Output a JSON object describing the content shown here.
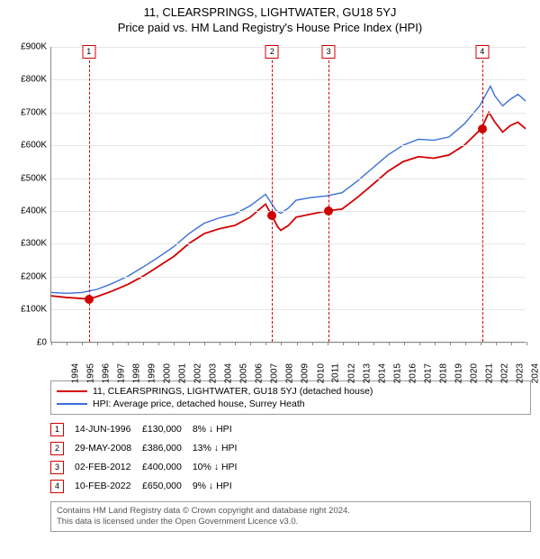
{
  "title": {
    "line1": "11, CLEARSPRINGS, LIGHTWATER, GU18 5YJ",
    "line2": "Price paid vs. HM Land Registry's House Price Index (HPI)"
  },
  "chart": {
    "type": "line",
    "x_min": 1994,
    "x_max": 2025,
    "y_min": 0,
    "y_max": 900000,
    "y_tick_step": 100000,
    "y_tick_prefix": "£",
    "y_tick_suffix": "K",
    "x_ticks": [
      1994,
      1995,
      1996,
      1997,
      1998,
      1999,
      2000,
      2001,
      2002,
      2003,
      2004,
      2005,
      2006,
      2007,
      2008,
      2009,
      2010,
      2011,
      2012,
      2013,
      2014,
      2015,
      2016,
      2017,
      2018,
      2019,
      2020,
      2021,
      2022,
      2023,
      2024,
      2025
    ],
    "grid_color": "#e6e6e6",
    "axis_color": "#888888",
    "background_color": "#ffffff",
    "series": [
      {
        "name": "11, CLEARSPRINGS, LIGHTWATER, GU18 5YJ (detached house)",
        "color": "#d00000",
        "width": 1.8,
        "points": [
          [
            1994.0,
            140000
          ],
          [
            1995.0,
            135000
          ],
          [
            1996.0,
            132000
          ],
          [
            1996.45,
            130000
          ],
          [
            1997.0,
            138000
          ],
          [
            1998.0,
            155000
          ],
          [
            1999.0,
            175000
          ],
          [
            2000.0,
            200000
          ],
          [
            2001.0,
            230000
          ],
          [
            2002.0,
            260000
          ],
          [
            2003.0,
            300000
          ],
          [
            2004.0,
            330000
          ],
          [
            2005.0,
            345000
          ],
          [
            2006.0,
            355000
          ],
          [
            2007.0,
            380000
          ],
          [
            2008.0,
            420000
          ],
          [
            2008.4,
            386000
          ],
          [
            2008.8,
            350000
          ],
          [
            2009.0,
            340000
          ],
          [
            2009.5,
            355000
          ],
          [
            2010.0,
            380000
          ],
          [
            2011.0,
            390000
          ],
          [
            2012.1,
            400000
          ],
          [
            2013.0,
            405000
          ],
          [
            2014.0,
            440000
          ],
          [
            2015.0,
            480000
          ],
          [
            2016.0,
            520000
          ],
          [
            2017.0,
            550000
          ],
          [
            2018.0,
            565000
          ],
          [
            2019.0,
            560000
          ],
          [
            2020.0,
            570000
          ],
          [
            2021.0,
            600000
          ],
          [
            2022.1,
            650000
          ],
          [
            2022.6,
            700000
          ],
          [
            2023.0,
            670000
          ],
          [
            2023.5,
            640000
          ],
          [
            2024.0,
            660000
          ],
          [
            2024.5,
            670000
          ],
          [
            2025.0,
            650000
          ]
        ]
      },
      {
        "name": "HPI: Average price, detached house, Surrey Heath",
        "color": "#3a6fd8",
        "width": 1.4,
        "points": [
          [
            1994.0,
            150000
          ],
          [
            1995.0,
            148000
          ],
          [
            1996.0,
            150000
          ],
          [
            1997.0,
            160000
          ],
          [
            1998.0,
            178000
          ],
          [
            1999.0,
            200000
          ],
          [
            2000.0,
            228000
          ],
          [
            2001.0,
            258000
          ],
          [
            2002.0,
            290000
          ],
          [
            2003.0,
            330000
          ],
          [
            2004.0,
            362000
          ],
          [
            2005.0,
            378000
          ],
          [
            2006.0,
            390000
          ],
          [
            2007.0,
            415000
          ],
          [
            2008.0,
            450000
          ],
          [
            2008.7,
            400000
          ],
          [
            2009.0,
            392000
          ],
          [
            2009.5,
            408000
          ],
          [
            2010.0,
            432000
          ],
          [
            2011.0,
            440000
          ],
          [
            2012.0,
            445000
          ],
          [
            2013.0,
            455000
          ],
          [
            2014.0,
            490000
          ],
          [
            2015.0,
            530000
          ],
          [
            2016.0,
            570000
          ],
          [
            2017.0,
            600000
          ],
          [
            2018.0,
            618000
          ],
          [
            2019.0,
            615000
          ],
          [
            2020.0,
            625000
          ],
          [
            2021.0,
            665000
          ],
          [
            2022.0,
            720000
          ],
          [
            2022.7,
            780000
          ],
          [
            2023.0,
            750000
          ],
          [
            2023.5,
            720000
          ],
          [
            2024.0,
            740000
          ],
          [
            2024.5,
            755000
          ],
          [
            2025.0,
            735000
          ]
        ]
      }
    ],
    "events": [
      {
        "index": 1,
        "x": 1996.45,
        "color": "#d00000"
      },
      {
        "index": 2,
        "x": 2008.41,
        "color": "#d00000"
      },
      {
        "index": 3,
        "x": 2012.09,
        "color": "#d00000"
      },
      {
        "index": 4,
        "x": 2022.11,
        "color": "#d00000"
      }
    ],
    "sale_markers": [
      {
        "x": 1996.45,
        "y": 130000
      },
      {
        "x": 2008.41,
        "y": 386000
      },
      {
        "x": 2012.09,
        "y": 400000
      },
      {
        "x": 2022.11,
        "y": 650000
      }
    ]
  },
  "legend": {
    "rows": [
      {
        "color": "#d00000",
        "label": "11, CLEARSPRINGS, LIGHTWATER, GU18 5YJ (detached house)"
      },
      {
        "color": "#3a6fd8",
        "label": "HPI: Average price, detached house, Surrey Heath"
      }
    ]
  },
  "sales": {
    "rows": [
      {
        "index": "1",
        "date": "14-JUN-1996",
        "price": "£130,000",
        "delta": "8% ↓ HPI"
      },
      {
        "index": "2",
        "date": "29-MAY-2008",
        "price": "£386,000",
        "delta": "13% ↓ HPI"
      },
      {
        "index": "3",
        "date": "02-FEB-2012",
        "price": "£400,000",
        "delta": "10% ↓ HPI"
      },
      {
        "index": "4",
        "date": "10-FEB-2022",
        "price": "£650,000",
        "delta": "9% ↓ HPI"
      }
    ]
  },
  "footer": {
    "line1": "Contains HM Land Registry data © Crown copyright and database right 2024.",
    "line2": "This data is licensed under the Open Government Licence v3.0."
  }
}
